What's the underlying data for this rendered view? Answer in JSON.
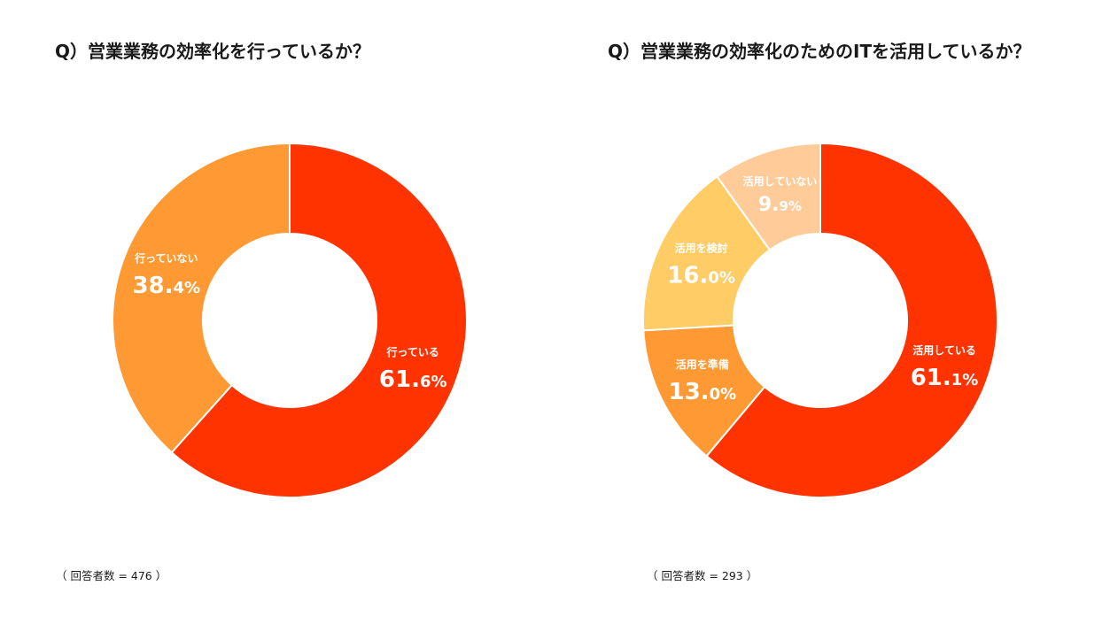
{
  "chart_data": [
    {
      "type": "pie",
      "title": "Q）営業業務の効率化を行っているか？",
      "note": "（ 回答者数 = 476 ）",
      "slices": [
        {
          "label": "行っている",
          "value": 61.6,
          "int": "61",
          "dec": "6",
          "color": "#FF3300"
        },
        {
          "label": "行っていない",
          "value": 38.4,
          "int": "38",
          "dec": "4",
          "color": "#FF9933"
        }
      ]
    },
    {
      "type": "pie",
      "title": "Q）営業業務の効率化のためのITを活用しているか？",
      "note": "（ 回答者数 = 293 ）",
      "slices": [
        {
          "label": "活用している",
          "value": 61.1,
          "int": "61",
          "dec": "1",
          "color": "#FF3300"
        },
        {
          "label": "活用を準備",
          "value": 13.0,
          "int": "13",
          "dec": "0",
          "color": "#FF9933"
        },
        {
          "label": "活用を検討",
          "value": 16.0,
          "int": "16",
          "dec": "0",
          "color": "#FFCC66"
        },
        {
          "label": "活用していない",
          "value": 9.9,
          "int": "9",
          "dec": "9",
          "color": "#FFCC99"
        }
      ]
    }
  ]
}
